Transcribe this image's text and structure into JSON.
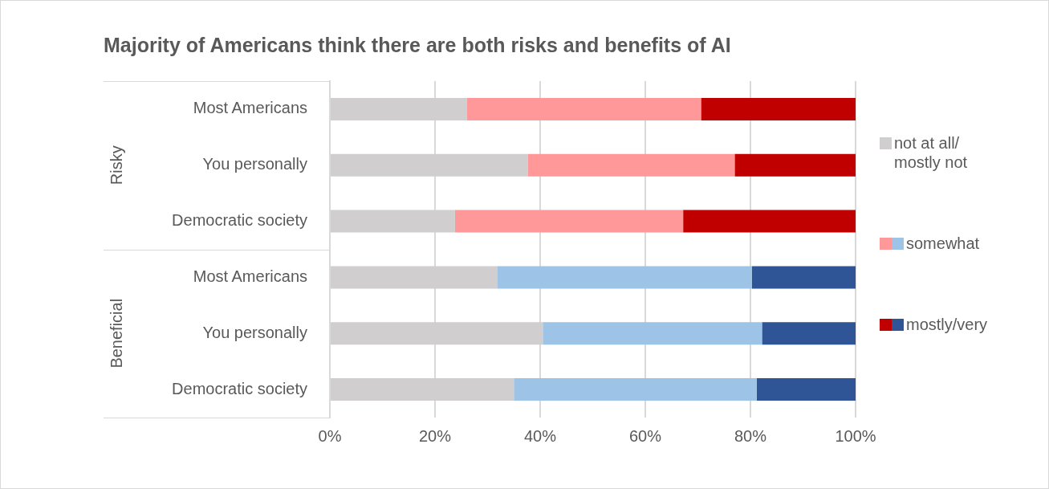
{
  "chart_data": {
    "type": "bar",
    "orientation": "horizontal",
    "stacked": true,
    "title": "Majority of Americans think there are both risks and benefits of AI",
    "categories": [
      "Most Americans",
      "You personally",
      "Democratic society",
      "Most Americans",
      "You personally",
      "Democratic society"
    ],
    "series": [
      {
        "name": "not at all/ mostly not",
        "colors": [
          "#d0cece",
          "#d0cece",
          "#d0cece",
          "#d0cece",
          "#d0cece",
          "#d0cece"
        ],
        "values": [
          26.1,
          37.7,
          23.8,
          31.8,
          40.5,
          35.0
        ]
      },
      {
        "name": "somewhat",
        "colors": [
          "#ff9999",
          "#ff9999",
          "#ff9999",
          "#9dc3e6",
          "#9dc3e6",
          "#9dc3e6"
        ],
        "values": [
          44.5,
          39.3,
          43.4,
          48.5,
          41.7,
          46.2
        ]
      },
      {
        "name": "mostly/very",
        "colors": [
          "#c00000",
          "#c00000",
          "#c00000",
          "#2f5597",
          "#2f5597",
          "#2f5597"
        ],
        "values": [
          29.4,
          23.0,
          32.8,
          19.7,
          17.8,
          18.8
        ]
      }
    ],
    "xlim": [
      0,
      100
    ],
    "xticks": [
      {
        "value": 0,
        "label": "0%"
      },
      {
        "value": 20,
        "label": "20%"
      },
      {
        "value": 40,
        "label": "40%"
      },
      {
        "value": 60,
        "label": "60%"
      },
      {
        "value": 80,
        "label": "80%"
      },
      {
        "value": 100,
        "label": "100%"
      }
    ],
    "grid": "x",
    "legend": "right",
    "annotations": [
      "Risky",
      "Beneficial"
    ]
  }
}
